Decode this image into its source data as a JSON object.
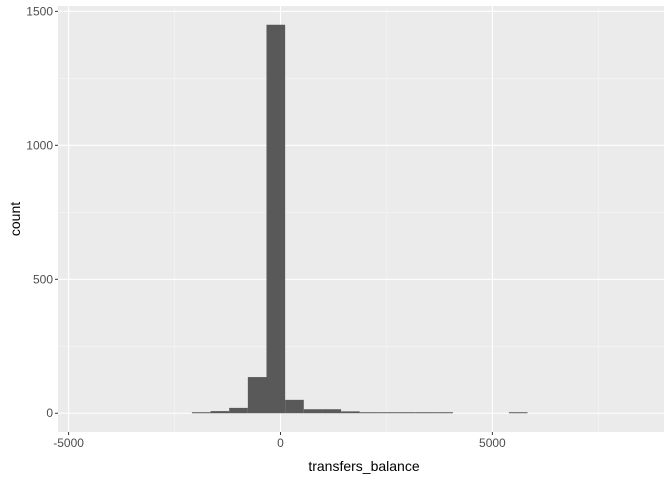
{
  "chart_data": {
    "type": "bar",
    "subtype": "histogram",
    "xlabel": "transfers_balance",
    "ylabel": "count",
    "xlim": [
      -5250,
      9050
    ],
    "ylim": [
      -70,
      1520
    ],
    "x_ticks": [
      -5000,
      0,
      5000
    ],
    "x_tick_labels": [
      "-5000",
      "0",
      "5000"
    ],
    "y_ticks": [
      0,
      500,
      1000,
      1500
    ],
    "y_tick_labels": [
      "0",
      "500",
      "1000",
      "1500"
    ],
    "grid": true,
    "bin_width": 440,
    "bins": [
      {
        "x0": -2090,
        "x1": -1650,
        "count": 3
      },
      {
        "x0": -1650,
        "x1": -1210,
        "count": 8
      },
      {
        "x0": -1210,
        "x1": -770,
        "count": 20
      },
      {
        "x0": -770,
        "x1": -330,
        "count": 135
      },
      {
        "x0": -330,
        "x1": 110,
        "count": 1450
      },
      {
        "x0": 110,
        "x1": 550,
        "count": 50
      },
      {
        "x0": 550,
        "x1": 990,
        "count": 15
      },
      {
        "x0": 990,
        "x1": 1430,
        "count": 15
      },
      {
        "x0": 1430,
        "x1": 1870,
        "count": 7
      },
      {
        "x0": 1870,
        "x1": 2310,
        "count": 3
      },
      {
        "x0": 2310,
        "x1": 2750,
        "count": 2
      },
      {
        "x0": 2750,
        "x1": 3190,
        "count": 2
      },
      {
        "x0": 3190,
        "x1": 3630,
        "count": 2
      },
      {
        "x0": 3630,
        "x1": 4070,
        "count": 1
      },
      {
        "x0": 5390,
        "x1": 5830,
        "count": 2
      }
    ],
    "colors": {
      "panel_background": "#EBEBEB",
      "grid_major": "#FFFFFF",
      "grid_minor": "#F5F5F5",
      "bar_fill": "#595959",
      "tick_text": "#4D4D4D",
      "tick_mark": "#333333"
    }
  }
}
